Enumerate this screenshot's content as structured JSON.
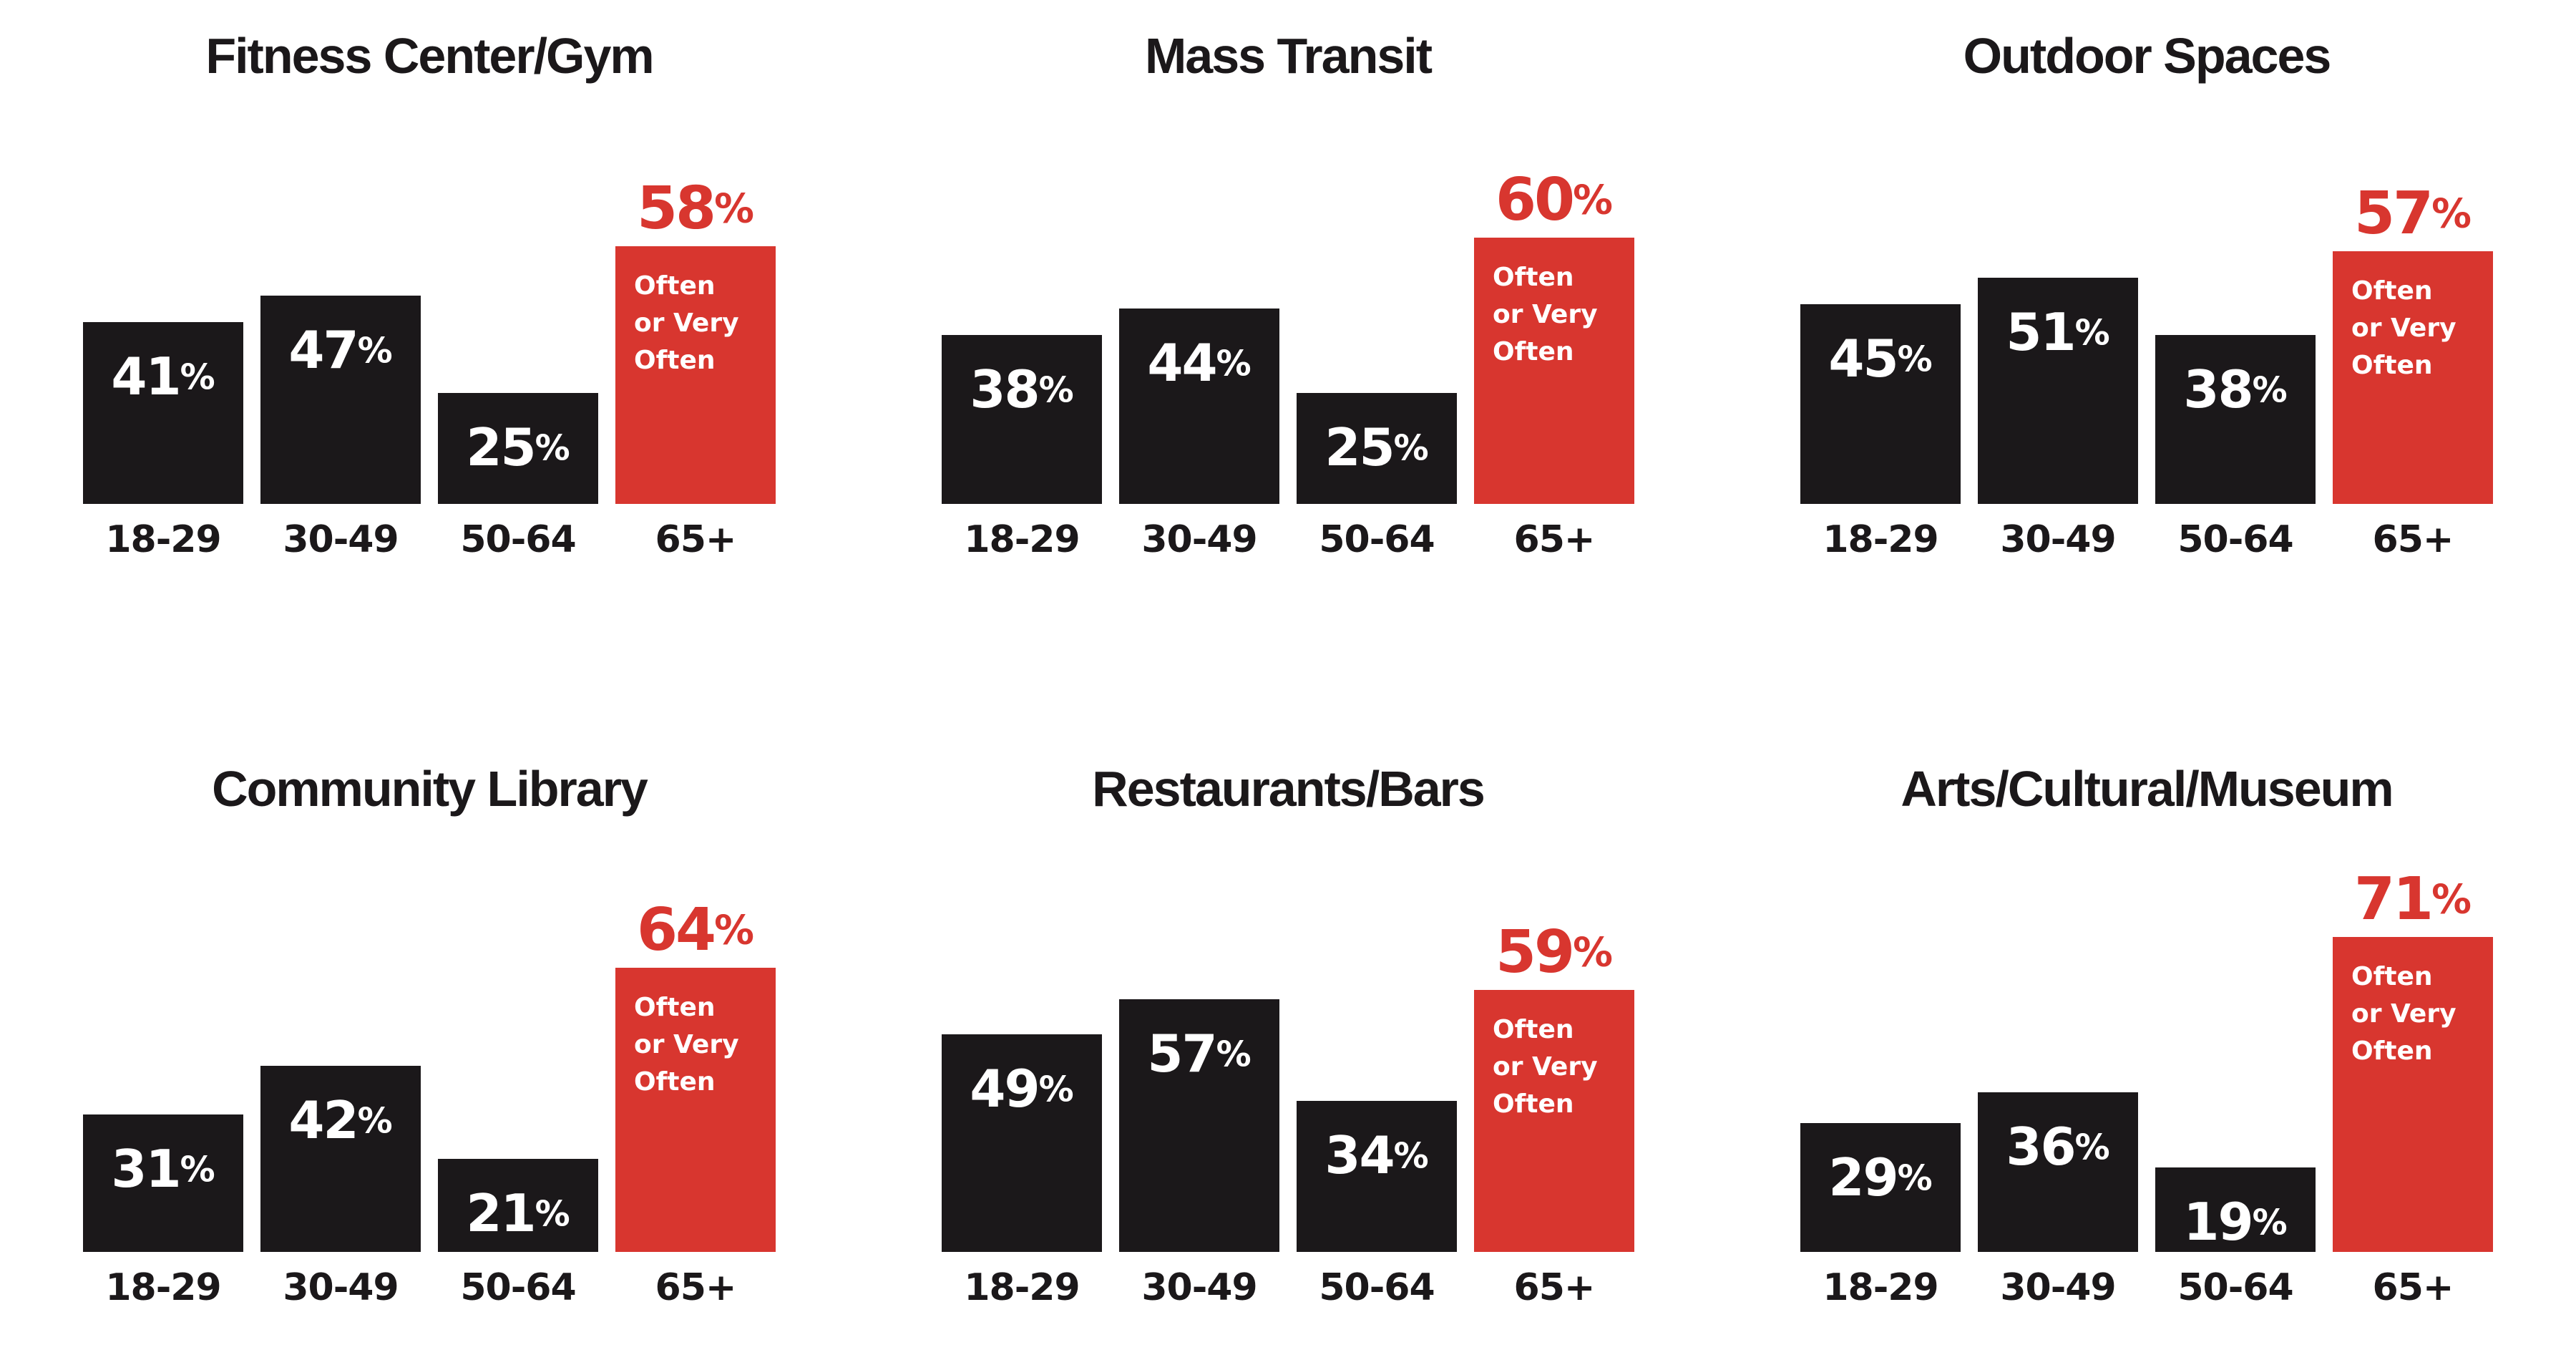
{
  "percent_sign": "%",
  "highlight_annotation_lines": [
    "Often",
    "or Very",
    "Often"
  ],
  "colors": {
    "bar": "#1b181a",
    "highlight": "#d8362f",
    "label_on_bar": "#ffffff",
    "text": "#1b181a",
    "background": "#ffffff"
  },
  "chart_data": [
    {
      "type": "bar",
      "title": "Fitness Center/Gym",
      "categories": [
        "18-29",
        "30-49",
        "50-64",
        "65+"
      ],
      "values": [
        41,
        47,
        25,
        58
      ],
      "highlight_index": 3,
      "highlight_label": "Often or Very Often",
      "bar_color": "#1b181a",
      "highlight_color": "#d8362f",
      "ylim": [
        0,
        100
      ],
      "grid": false,
      "value_labels_on_bars": true
    },
    {
      "type": "bar",
      "title": "Mass Transit",
      "categories": [
        "18-29",
        "30-49",
        "50-64",
        "65+"
      ],
      "values": [
        38,
        44,
        25,
        60
      ],
      "highlight_index": 3,
      "highlight_label": "Often or Very Often",
      "bar_color": "#1b181a",
      "highlight_color": "#d8362f",
      "ylim": [
        0,
        100
      ],
      "grid": false,
      "value_labels_on_bars": true
    },
    {
      "type": "bar",
      "title": "Outdoor Spaces",
      "categories": [
        "18-29",
        "30-49",
        "50-64",
        "65+"
      ],
      "values": [
        45,
        51,
        38,
        57
      ],
      "highlight_index": 3,
      "highlight_label": "Often or Very Often",
      "bar_color": "#1b181a",
      "highlight_color": "#d8362f",
      "ylim": [
        0,
        100
      ],
      "grid": false,
      "value_labels_on_bars": true
    },
    {
      "type": "bar",
      "title": "Community Library",
      "categories": [
        "18-29",
        "30-49",
        "50-64",
        "65+"
      ],
      "values": [
        31,
        42,
        21,
        64
      ],
      "highlight_index": 3,
      "highlight_label": "Often or Very Often",
      "bar_color": "#1b181a",
      "highlight_color": "#d8362f",
      "ylim": [
        0,
        100
      ],
      "grid": false,
      "value_labels_on_bars": true
    },
    {
      "type": "bar",
      "title": "Restaurants/Bars",
      "categories": [
        "18-29",
        "30-49",
        "50-64",
        "65+"
      ],
      "values": [
        49,
        57,
        34,
        59
      ],
      "highlight_index": 3,
      "highlight_label": "Often or Very Often",
      "bar_color": "#1b181a",
      "highlight_color": "#d8362f",
      "ylim": [
        0,
        100
      ],
      "grid": false,
      "value_labels_on_bars": true
    },
    {
      "type": "bar",
      "title": "Arts/Cultural/Museum",
      "categories": [
        "18-29",
        "30-49",
        "50-64",
        "65+"
      ],
      "values": [
        29,
        36,
        19,
        71
      ],
      "highlight_index": 3,
      "highlight_label": "Often or Very Often",
      "bar_color": "#1b181a",
      "highlight_color": "#d8362f",
      "ylim": [
        0,
        100
      ],
      "grid": false,
      "value_labels_on_bars": true
    }
  ]
}
